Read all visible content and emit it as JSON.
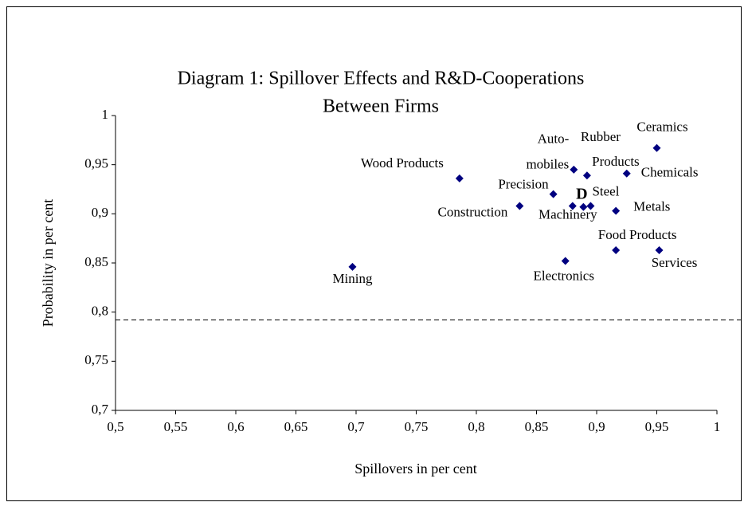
{
  "chart_data": {
    "type": "scatter",
    "title": [
      "Diagram 1: Spillover Effects and R&D-Cooperations",
      "Between Firms"
    ],
    "xlabel": "Spillovers in per cent",
    "ylabel": "Probability in per cent",
    "color": "#000080",
    "x": [
      0.697,
      0.786,
      0.836,
      0.864,
      0.881,
      0.88,
      0.889,
      0.892,
      0.895,
      0.925,
      0.95,
      0.916,
      0.916,
      0.874,
      0.952
    ],
    "values": [
      0.846,
      0.936,
      0.908,
      0.92,
      0.945,
      0.908,
      0.907,
      0.939,
      0.908,
      0.941,
      0.967,
      0.903,
      0.863,
      0.852,
      0.863
    ],
    "point_labels": [
      [
        "Mining"
      ],
      [
        "Wood Products"
      ],
      [
        "Construction"
      ],
      [
        "Precision"
      ],
      [
        "Auto-",
        "mobiles"
      ],
      [
        "Machinery"
      ],
      [
        "D"
      ],
      [
        "Rubber",
        "Products"
      ],
      [
        "Steel"
      ],
      [
        "Chemicals"
      ],
      [
        "Ceramics"
      ],
      [
        "Metals"
      ],
      [
        "Food Products"
      ],
      [
        "Electronics"
      ],
      [
        "Services"
      ]
    ],
    "reference_line": 0.792,
    "xlim": [
      0.5,
      1
    ],
    "xticks": [
      {
        "value": 0.5,
        "label": "0,5"
      },
      {
        "value": 0.55,
        "label": "0,55"
      },
      {
        "value": 0.6,
        "label": "0,6"
      },
      {
        "value": 0.65,
        "label": "0,65"
      },
      {
        "value": 0.7,
        "label": "0,7"
      },
      {
        "value": 0.75,
        "label": "0,75"
      },
      {
        "value": 0.8,
        "label": "0,8"
      },
      {
        "value": 0.85,
        "label": "0,85"
      },
      {
        "value": 0.9,
        "label": "0,9"
      },
      {
        "value": 0.95,
        "label": "0,95"
      },
      1
    ],
    "ylim": [
      0.7,
      1
    ],
    "yticks": [
      {
        "value": 0.7,
        "label": "0,7"
      },
      {
        "value": 0.75,
        "label": "0,75"
      },
      {
        "value": 0.8,
        "label": "0,8"
      },
      {
        "value": 0.85,
        "label": "0,85"
      },
      {
        "value": 0.9,
        "label": "0,9"
      },
      {
        "value": 0.95,
        "label": "0,95"
      },
      1
    ]
  }
}
